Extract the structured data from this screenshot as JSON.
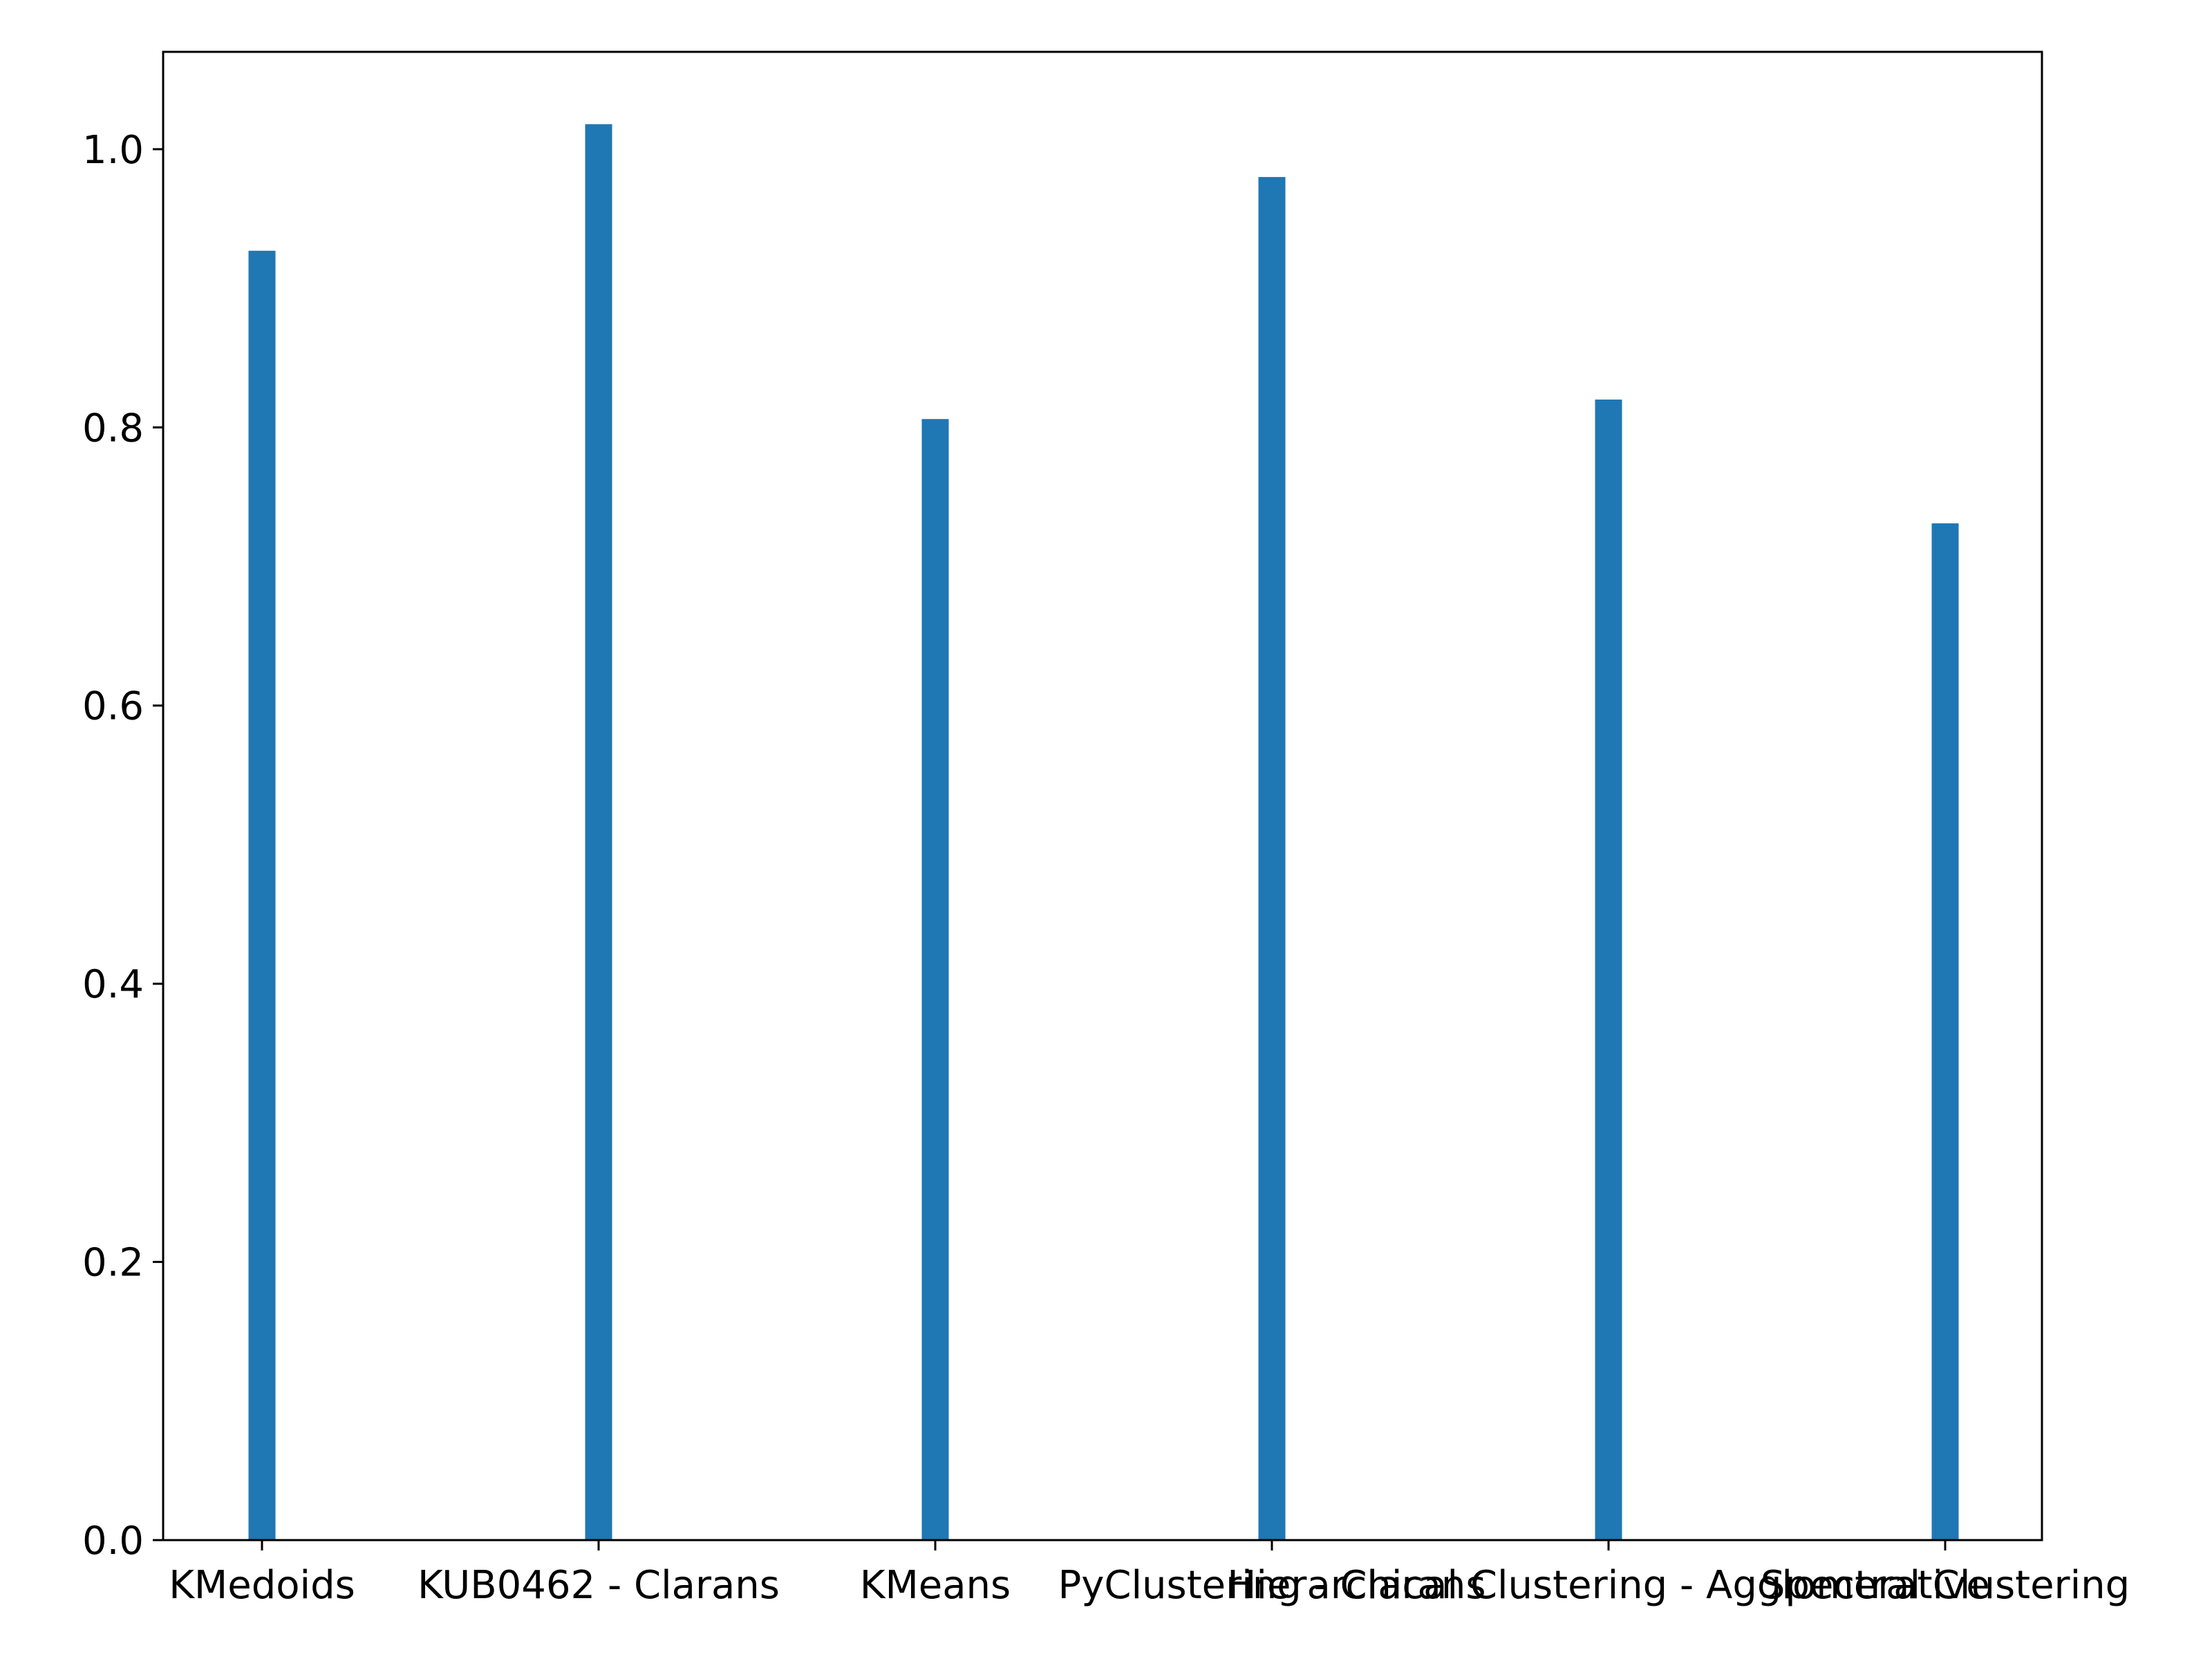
{
  "chart_data": {
    "type": "bar",
    "title": "",
    "xlabel": "",
    "ylabel": "",
    "categories": [
      "KMedoids",
      "KUB0462 - Clarans",
      "KMeans",
      "PyClustering - Clarans",
      "Hierarchical Clustering - Agglomerative",
      "Spectral Clustering"
    ],
    "values": [
      0.927,
      1.018,
      0.806,
      0.98,
      0.82,
      0.731
    ],
    "ylim": [
      0,
      1.07
    ],
    "yticks": [
      "0.0",
      "0.2",
      "0.4",
      "0.6",
      "0.8",
      "1.0"
    ],
    "bar_color": "#1f77b4",
    "grid": false,
    "legend": "none"
  }
}
